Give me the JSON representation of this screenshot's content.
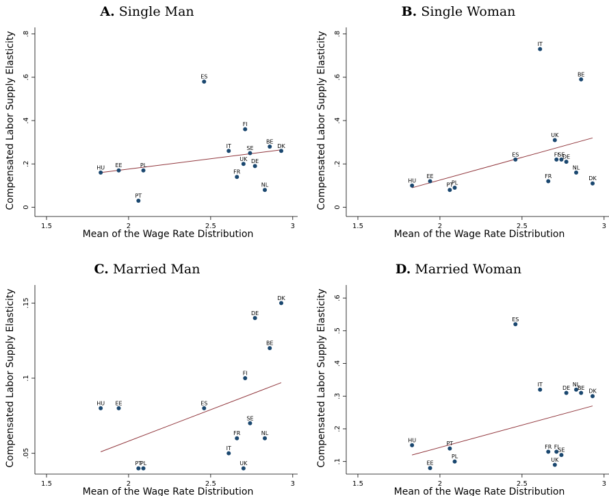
{
  "chart_data": [
    {
      "type": "scatter",
      "panel_label": "A.",
      "title": "Single Man",
      "x_label": "Mean of the Wage Rate Distribution",
      "y_label": "Compensated Labor Supply Elasticity",
      "xlim": [
        1.45,
        3.03
      ],
      "ylim": [
        -0.03,
        0.83
      ],
      "xticks": [
        1.5,
        2,
        2.5,
        3
      ],
      "yticks": [
        0,
        {
          "value": 0.2,
          "label": ".2"
        },
        {
          "value": 0.4,
          "label": ".4"
        },
        {
          "value": 0.6,
          "label": ".6"
        },
        {
          "value": 0.8,
          "label": ".8"
        }
      ],
      "color": "#1a476f",
      "point_labels": [
        "HU",
        "EE",
        "PT",
        "PL",
        "ES",
        "IT",
        "FR",
        "UK",
        "FI",
        "SE",
        "DE",
        "NL",
        "BE",
        "DK"
      ],
      "x": [
        1.83,
        1.94,
        2.06,
        2.09,
        2.46,
        2.61,
        2.66,
        2.7,
        2.71,
        2.74,
        2.77,
        2.83,
        2.86,
        2.93
      ],
      "values": [
        0.16,
        0.17,
        0.03,
        0.17,
        0.58,
        0.26,
        0.14,
        0.2,
        0.36,
        0.25,
        0.19,
        0.08,
        0.28,
        0.26
      ],
      "fit": {
        "color": "#90353b",
        "x": [
          1.83,
          2.93
        ],
        "values": [
          0.16,
          0.265
        ]
      }
    },
    {
      "type": "scatter",
      "panel_label": "B.",
      "title": "Single Woman",
      "x_label": "Mean of the Wage Rate Distribution",
      "y_label": "Compensated Labor Supply Elasticity",
      "xlim": [
        1.45,
        3.03
      ],
      "ylim": [
        -0.03,
        0.83
      ],
      "xticks": [
        1.5,
        2,
        2.5,
        3
      ],
      "yticks": [
        0,
        {
          "value": 0.2,
          "label": ".2"
        },
        {
          "value": 0.4,
          "label": ".4"
        },
        {
          "value": 0.6,
          "label": ".6"
        },
        {
          "value": 0.8,
          "label": ".8"
        }
      ],
      "color": "#1a476f",
      "point_labels": [
        "HU",
        "EE",
        "PT",
        "PL",
        "ES",
        "IT",
        "FR",
        "UK",
        "FI",
        "SE",
        "DE",
        "NL",
        "BE",
        "DK"
      ],
      "x": [
        1.83,
        1.94,
        2.06,
        2.09,
        2.46,
        2.61,
        2.66,
        2.7,
        2.71,
        2.74,
        2.77,
        2.83,
        2.86,
        2.93
      ],
      "values": [
        0.1,
        0.12,
        0.08,
        0.09,
        0.22,
        0.73,
        0.12,
        0.31,
        0.22,
        0.22,
        0.21,
        0.16,
        0.59,
        0.11
      ],
      "fit": {
        "color": "#90353b",
        "x": [
          1.83,
          2.93
        ],
        "values": [
          0.09,
          0.32
        ]
      }
    },
    {
      "type": "scatter",
      "panel_label": "C.",
      "title": "Married Man",
      "x_label": "Mean of the Wage Rate Distribution",
      "y_label": "Compensated Labor Supply Elasticity",
      "xlim": [
        1.45,
        3.03
      ],
      "ylim": [
        0.038,
        0.162
      ],
      "xticks": [
        1.5,
        2,
        2.5,
        3
      ],
      "yticks": [
        {
          "value": 0.05,
          "label": ".05"
        },
        {
          "value": 0.1,
          "label": ".1"
        },
        {
          "value": 0.15,
          "label": ".15"
        }
      ],
      "color": "#1a476f",
      "point_labels": [
        "HU",
        "EE",
        "PT",
        "PL",
        "ES",
        "IT",
        "FR",
        "UK",
        "FI",
        "SE",
        "DE",
        "NL",
        "BE",
        "DK"
      ],
      "x": [
        1.83,
        1.94,
        2.06,
        2.09,
        2.46,
        2.61,
        2.66,
        2.7,
        2.71,
        2.74,
        2.77,
        2.83,
        2.86,
        2.93
      ],
      "values": [
        0.08,
        0.08,
        0.04,
        0.04,
        0.08,
        0.05,
        0.06,
        0.04,
        0.1,
        0.07,
        0.14,
        0.06,
        0.12,
        0.15
      ],
      "fit": {
        "color": "#90353b",
        "x": [
          1.83,
          2.93
        ],
        "values": [
          0.051,
          0.097
        ]
      }
    },
    {
      "type": "scatter",
      "panel_label": "D.",
      "title": "Married Woman",
      "x_label": "Mean of the Wage Rate Distribution",
      "y_label": "Compensated Labor Supply Elasticity",
      "xlim": [
        1.45,
        3.03
      ],
      "ylim": [
        0.07,
        0.64
      ],
      "xticks": [
        1.5,
        2,
        2.5,
        3
      ],
      "yticks": [
        {
          "value": 0.1,
          "label": ".1"
        },
        {
          "value": 0.2,
          "label": ".2"
        },
        {
          "value": 0.3,
          "label": ".3"
        },
        {
          "value": 0.4,
          "label": ".4"
        },
        {
          "value": 0.5,
          "label": ".5"
        },
        {
          "value": 0.6,
          "label": ".6"
        }
      ],
      "color": "#1a476f",
      "point_labels": [
        "HU",
        "EE",
        "PT",
        "PL",
        "ES",
        "IT",
        "FR",
        "UK",
        "FI",
        "SE",
        "DE",
        "NL",
        "BE",
        "DK"
      ],
      "x": [
        1.83,
        1.94,
        2.06,
        2.09,
        2.46,
        2.61,
        2.66,
        2.7,
        2.71,
        2.74,
        2.77,
        2.83,
        2.86,
        2.93
      ],
      "values": [
        0.15,
        0.08,
        0.14,
        0.1,
        0.52,
        0.32,
        0.13,
        0.09,
        0.13,
        0.12,
        0.31,
        0.32,
        0.31,
        0.3
      ],
      "fit": {
        "color": "#90353b",
        "x": [
          1.83,
          2.93
        ],
        "values": [
          0.12,
          0.27
        ]
      }
    }
  ]
}
